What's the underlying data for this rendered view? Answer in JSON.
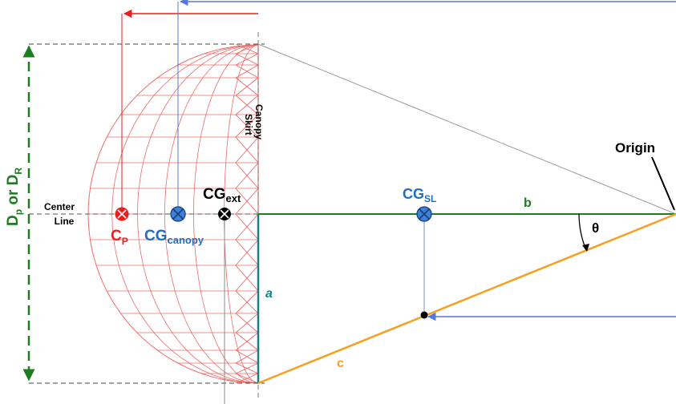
{
  "labels": {
    "diameter": {
      "main": "D",
      "sub1": "p",
      "mid": " or D",
      "sub2": "R"
    },
    "center_line": {
      "line1": "Center",
      "line2": "Line"
    },
    "canopy_skirt": {
      "line1": "Canopy",
      "line2": "Skirt"
    },
    "cp": {
      "main": "C",
      "sub": "P"
    },
    "cg_canopy": {
      "main": "CG",
      "sub": "canopy"
    },
    "cg_ext": {
      "main": "CG",
      "sub": "ext"
    },
    "cg_sl": {
      "main": "CG",
      "sub": "SL"
    },
    "origin": "Origin",
    "theta": "θ",
    "side_a": "a",
    "side_b": "b",
    "side_c": "c"
  },
  "colors": {
    "canopy_mesh": "#f06a6a",
    "red": "#ee1c1c",
    "blue": "#1f6fbf",
    "blue_arrow": "#5577dd",
    "green": "#1e7d1e",
    "teal": "#158080",
    "orange": "#f4a020",
    "black": "#000000",
    "gray": "#999999"
  }
}
